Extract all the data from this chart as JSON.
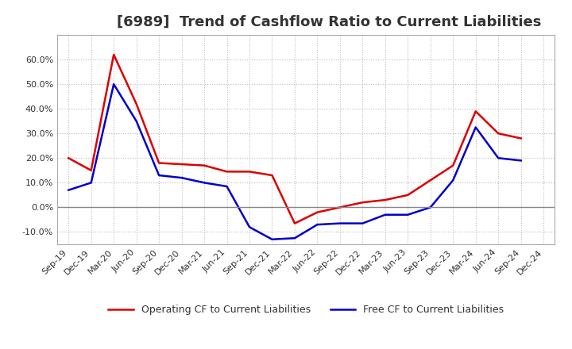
{
  "title": "[6989]  Trend of Cashflow Ratio to Current Liabilities",
  "x_labels": [
    "Sep-19",
    "Dec-19",
    "Mar-20",
    "Jun-20",
    "Sep-20",
    "Dec-20",
    "Mar-21",
    "Jun-21",
    "Sep-21",
    "Dec-21",
    "Mar-22",
    "Jun-22",
    "Sep-22",
    "Dec-22",
    "Mar-23",
    "Jun-23",
    "Sep-23",
    "Dec-23",
    "Mar-24",
    "Jun-24",
    "Sep-24",
    "Dec-24"
  ],
  "operating_cf": [
    0.2,
    0.15,
    0.62,
    0.42,
    0.18,
    0.175,
    0.17,
    0.145,
    0.145,
    0.13,
    -0.065,
    -0.02,
    0.0,
    0.02,
    0.03,
    0.05,
    0.11,
    0.17,
    0.39,
    0.3,
    0.28,
    null
  ],
  "free_cf": [
    0.07,
    0.1,
    0.5,
    0.35,
    0.13,
    0.12,
    0.1,
    0.085,
    -0.08,
    -0.13,
    -0.125,
    -0.07,
    -0.065,
    -0.065,
    -0.03,
    -0.03,
    0.0,
    0.11,
    0.325,
    0.2,
    0.19,
    null
  ],
  "operating_color": "#dd0000",
  "free_color": "#0000cc",
  "background_color": "#ffffff",
  "plot_bg_color": "#ffffff",
  "grid_color": "#aaaaaa",
  "ylim": [
    -0.15,
    0.7
  ],
  "yticks": [
    -0.1,
    0.0,
    0.1,
    0.2,
    0.3,
    0.4,
    0.5,
    0.6
  ],
  "legend_op_label": "Operating CF to Current Liabilities",
  "legend_free_label": "Free CF to Current Liabilities",
  "title_fontsize": 13,
  "axis_fontsize": 8,
  "legend_fontsize": 9,
  "line_width": 1.8
}
